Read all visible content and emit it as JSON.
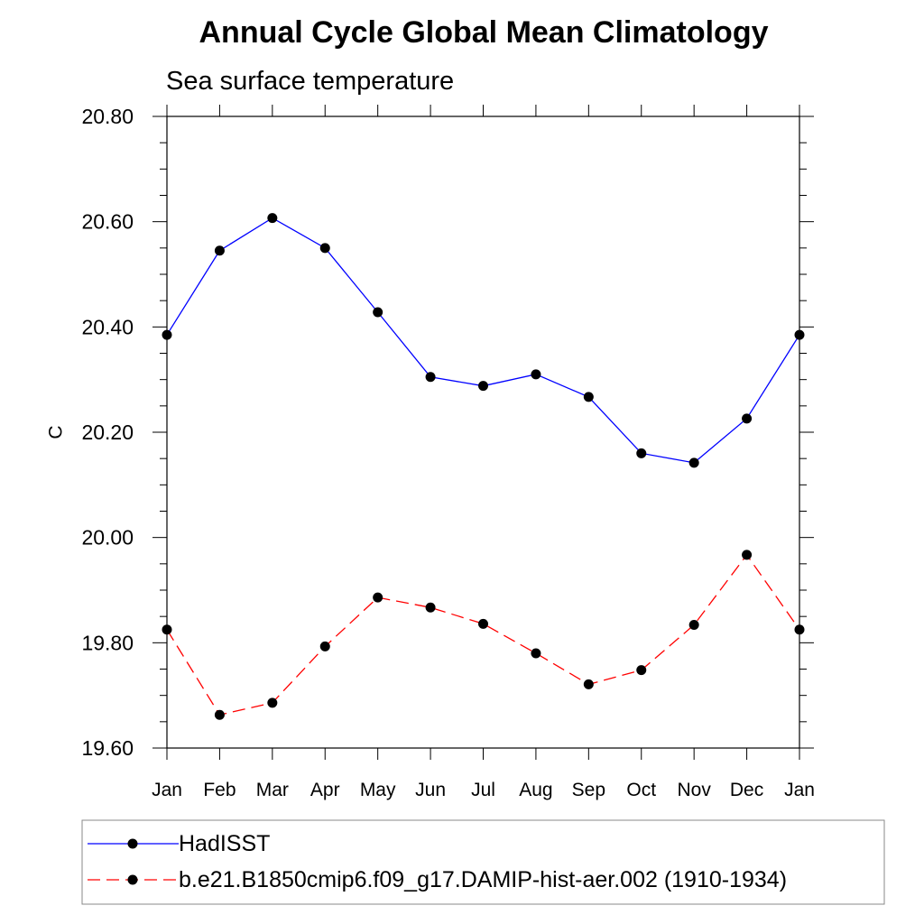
{
  "chart_data": {
    "type": "line",
    "title": "Annual Cycle Global Mean Climatology",
    "subtitle": "Sea surface temperature",
    "xlabel": "",
    "ylabel": "C",
    "categories": [
      "Jan",
      "Feb",
      "Mar",
      "Apr",
      "May",
      "Jun",
      "Jul",
      "Aug",
      "Sep",
      "Oct",
      "Nov",
      "Dec",
      "Jan"
    ],
    "ylim": [
      19.6,
      20.8
    ],
    "yticks": [
      "19.60",
      "19.80",
      "20.00",
      "20.20",
      "20.40",
      "20.60",
      "20.80"
    ],
    "grid": false,
    "legend_position": "bottom",
    "series": [
      {
        "name": "HadISST",
        "color": "#0000ff",
        "line_style": "solid",
        "marker": "filled-circle",
        "values": [
          20.385,
          20.545,
          20.607,
          20.55,
          20.428,
          20.305,
          20.288,
          20.31,
          20.267,
          20.16,
          20.142,
          20.226,
          20.385
        ]
      },
      {
        "name": "b.e21.B1850cmip6.f09_g17.DAMIP-hist-aer.002 (1910-1934)",
        "color": "#ff0000",
        "line_style": "dashed",
        "marker": "filled-circle",
        "values": [
          19.825,
          19.663,
          19.686,
          19.793,
          19.886,
          19.867,
          19.836,
          19.78,
          19.721,
          19.748,
          19.834,
          19.967,
          19.825
        ]
      }
    ]
  }
}
